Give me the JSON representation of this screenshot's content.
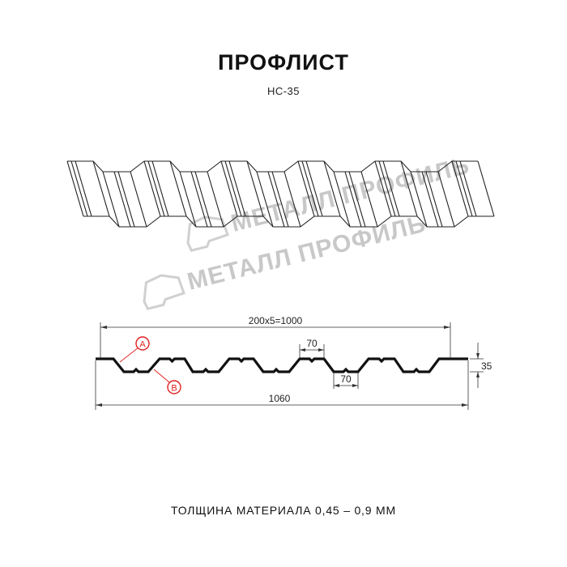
{
  "header": {
    "title": "ПРОФЛИСТ",
    "subtitle": "НС-35"
  },
  "watermark": {
    "logo_text": "МЕТАЛЛ ПРОФИЛЬ",
    "color": "#c8c8c8"
  },
  "drawing": {
    "dim_pitch": "200x5=1000",
    "dim_total": "1060",
    "dim_top_flat": "70",
    "dim_bottom_flat": "70",
    "dim_height": "35",
    "callout_a": "A",
    "callout_b": "B",
    "callout_color": "#e02020"
  },
  "footer": {
    "thickness": "ТОЛЩИНА МАТЕРИАЛА 0,45 – 0,9 ММ"
  }
}
